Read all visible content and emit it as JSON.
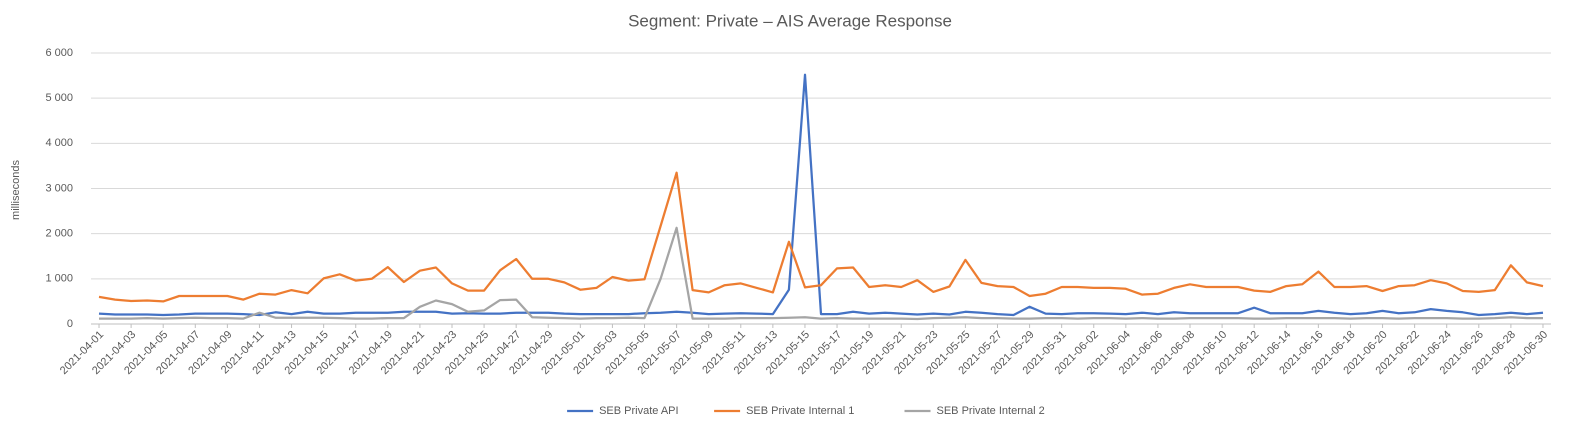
{
  "chart_data": {
    "type": "line",
    "title": "Segment: Private – AIS Average Response",
    "y_label": "milliseconds",
    "categories": [
      "2021-04-01",
      null,
      "2021-04-03",
      null,
      "2021-04-05",
      null,
      "2021-04-07",
      null,
      "2021-04-09",
      null,
      "2021-04-11",
      null,
      "2021-04-13",
      null,
      "2021-04-15",
      null,
      "2021-04-17",
      null,
      "2021-04-19",
      null,
      "2021-04-21",
      null,
      "2021-04-23",
      null,
      "2021-04-25",
      null,
      "2021-04-27",
      null,
      "2021-04-29",
      null,
      "2021-05-01",
      null,
      "2021-05-03",
      null,
      "2021-05-05",
      null,
      "2021-05-07",
      null,
      "2021-05-09",
      null,
      "2021-05-11",
      null,
      "2021-05-13",
      null,
      "2021-05-15",
      null,
      "2021-05-17",
      null,
      "2021-05-19",
      null,
      "2021-05-21",
      null,
      "2021-05-23",
      null,
      "2021-05-25",
      null,
      "2021-05-27",
      null,
      "2021-05-29",
      null,
      "2021-05-31",
      null,
      "2021-06-02",
      null,
      "2021-06-04",
      null,
      "2021-06-06",
      null,
      "2021-06-08",
      null,
      "2021-06-10",
      null,
      "2021-06-12",
      null,
      "2021-06-14",
      null,
      "2021-06-16",
      null,
      "2021-06-18",
      null,
      "2021-06-20",
      null,
      "2021-06-22",
      null,
      "2021-06-24",
      null,
      "2021-06-26",
      null,
      "2021-06-28",
      null,
      "2021-06-30"
    ],
    "series": [
      {
        "name": "SEB Private API",
        "color": "#4472c4",
        "values": [
          230,
          210,
          210,
          210,
          200,
          210,
          230,
          230,
          230,
          220,
          200,
          260,
          220,
          270,
          230,
          230,
          250,
          250,
          250,
          270,
          270,
          270,
          230,
          240,
          230,
          230,
          250,
          250,
          250,
          230,
          220,
          220,
          220,
          220,
          240,
          250,
          270,
          250,
          220,
          230,
          240,
          230,
          220,
          760,
          5520,
          220,
          220,
          270,
          230,
          250,
          230,
          210,
          230,
          210,
          270,
          250,
          220,
          200,
          380,
          230,
          220,
          240,
          240,
          230,
          220,
          250,
          220,
          260,
          240,
          240,
          240,
          240,
          360,
          240,
          240,
          240,
          290,
          250,
          220,
          240,
          290,
          240,
          260,
          330,
          290,
          260,
          200,
          220,
          250,
          220,
          250
        ]
      },
      {
        "name": "SEB Private Internal 1",
        "color": "#ed7d31",
        "values": [
          600,
          540,
          510,
          520,
          500,
          620,
          620,
          620,
          620,
          540,
          670,
          650,
          750,
          680,
          1010,
          1100,
          960,
          1000,
          1260,
          930,
          1180,
          1250,
          900,
          740,
          740,
          1190,
          1440,
          1000,
          1000,
          920,
          760,
          800,
          1040,
          960,
          990,
          2170,
          3350,
          750,
          700,
          860,
          900,
          800,
          700,
          1820,
          810,
          860,
          1230,
          1250,
          820,
          860,
          820,
          970,
          710,
          830,
          1420,
          910,
          840,
          820,
          620,
          670,
          820,
          820,
          800,
          800,
          780,
          650,
          670,
          800,
          880,
          820,
          820,
          820,
          740,
          710,
          840,
          880,
          1160,
          820,
          820,
          840,
          730,
          840,
          860,
          970,
          900,
          730,
          710,
          750,
          1300,
          920,
          840
        ]
      },
      {
        "name": "SEB Private Internal 2",
        "color": "#a5a5a5",
        "values": [
          120,
          120,
          120,
          130,
          120,
          130,
          140,
          130,
          130,
          120,
          250,
          140,
          140,
          140,
          140,
          130,
          120,
          120,
          130,
          130,
          380,
          520,
          440,
          270,
          300,
          530,
          540,
          150,
          140,
          130,
          120,
          130,
          130,
          140,
          130,
          1000,
          2130,
          120,
          120,
          120,
          130,
          130,
          130,
          140,
          150,
          120,
          130,
          120,
          120,
          120,
          120,
          110,
          130,
          140,
          150,
          130,
          130,
          120,
          120,
          130,
          130,
          120,
          130,
          130,
          120,
          130,
          120,
          120,
          130,
          130,
          130,
          130,
          120,
          120,
          130,
          130,
          130,
          130,
          120,
          130,
          130,
          120,
          130,
          130,
          130,
          120,
          120,
          130,
          150,
          130,
          130
        ]
      }
    ],
    "ylim": [
      0,
      6000
    ],
    "yticks": [
      0,
      {
        "value": 1000,
        "label": "1 000"
      },
      {
        "value": 2000,
        "label": "2 000"
      },
      {
        "value": 3000,
        "label": "3 000"
      },
      {
        "value": 4000,
        "label": "4 000"
      },
      {
        "value": 5000,
        "label": "5 000"
      },
      {
        "value": 6000,
        "label": "6 000"
      }
    ],
    "grid": true,
    "legend": "bottom"
  }
}
